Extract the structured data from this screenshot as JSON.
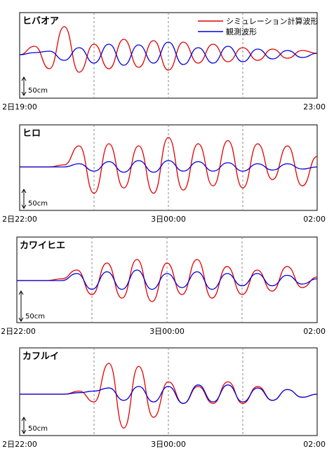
{
  "legend": {
    "simulated_label": "シミュレーション計算波形",
    "observed_label": "観測波形"
  },
  "colors": {
    "simulated": "#e00000",
    "observed": "#0000dd"
  },
  "chart_data": [
    {
      "type": "line",
      "title": "ヒバオア",
      "scale_label": "50cm",
      "x_tick_labels": [
        "2日19:00",
        "23:00"
      ],
      "xlim": [
        0,
        4
      ],
      "series": [
        {
          "name": "シミュレーション計算波形",
          "x": [
            0,
            0.2,
            0.4,
            0.6,
            0.8,
            1,
            1.2,
            1.4,
            1.6,
            1.8,
            2,
            2.2,
            2.4,
            2.6,
            2.8,
            3,
            3.2,
            3.4,
            3.6,
            3.8,
            4
          ],
          "y": [
            0,
            12,
            -20,
            40,
            -25,
            15,
            -20,
            22,
            -18,
            20,
            -22,
            18,
            -12,
            15,
            -10,
            10,
            -8,
            8,
            -5,
            6,
            2
          ]
        },
        {
          "name": "観測波形",
          "x": [
            0,
            0.2,
            0.4,
            0.6,
            0.8,
            1,
            1.2,
            1.4,
            1.6,
            1.8,
            2,
            2.2,
            2.4,
            2.6,
            2.8,
            3,
            3.2,
            3.4,
            3.6,
            3.8,
            4
          ],
          "y": [
            0,
            3,
            5,
            -8,
            10,
            -12,
            15,
            -15,
            14,
            -12,
            18,
            -14,
            10,
            -12,
            12,
            -10,
            8,
            -6,
            6,
            -4,
            2
          ]
        }
      ]
    },
    {
      "type": "line",
      "title": "ヒロ",
      "scale_label": "50cm",
      "x_tick_labels": [
        "2日22:00",
        "3日00:00",
        "02:00"
      ],
      "xlim": [
        0,
        4
      ],
      "series": [
        {
          "name": "シミュレーション計算波形",
          "x": [
            0,
            0.2,
            0.4,
            0.6,
            0.8,
            1,
            1.2,
            1.4,
            1.6,
            1.8,
            2,
            2.2,
            2.4,
            2.6,
            2.8,
            3,
            3.2,
            3.4,
            3.6,
            3.8,
            4
          ],
          "y": [
            0,
            0,
            0,
            2,
            20,
            -25,
            22,
            -20,
            20,
            -25,
            28,
            -22,
            22,
            -18,
            25,
            -20,
            22,
            -12,
            20,
            -18,
            10
          ]
        },
        {
          "name": "観測波形",
          "x": [
            0,
            0.2,
            0.4,
            0.6,
            0.8,
            1,
            1.2,
            1.4,
            1.6,
            1.8,
            2,
            2.2,
            2.4,
            2.6,
            2.8,
            3,
            3.2,
            3.4,
            3.6,
            3.8,
            4
          ],
          "y": [
            0,
            0,
            0,
            0,
            3,
            -4,
            5,
            -5,
            6,
            -5,
            6,
            -4,
            5,
            -4,
            4,
            -4,
            3,
            -3,
            3,
            -2,
            0
          ]
        }
      ]
    },
    {
      "type": "line",
      "title": "カワイヒエ",
      "scale_label": "50cm",
      "x_tick_labels": [
        "2日22:00",
        "3日00:00",
        "02:00"
      ],
      "xlim": [
        0,
        4
      ],
      "series": [
        {
          "name": "シミュレーション計算波形",
          "x": [
            0,
            0.2,
            0.4,
            0.6,
            0.8,
            1,
            1.2,
            1.4,
            1.6,
            1.8,
            2,
            2.2,
            2.4,
            2.6,
            2.8,
            3,
            3.2,
            3.4,
            3.6,
            3.8,
            4
          ],
          "y": [
            0,
            0,
            0,
            1,
            6,
            -8,
            10,
            -10,
            12,
            -12,
            10,
            -8,
            12,
            -10,
            8,
            -8,
            6,
            -6,
            8,
            -4,
            2
          ]
        },
        {
          "name": "観測波形",
          "x": [
            0,
            0.2,
            0.4,
            0.6,
            0.8,
            1,
            1.2,
            1.4,
            1.6,
            1.8,
            2,
            2.2,
            2.4,
            2.6,
            2.8,
            3,
            3.2,
            3.4,
            3.6,
            3.8,
            4
          ],
          "y": [
            0,
            0,
            0,
            0,
            4,
            -5,
            5,
            -5,
            6,
            -5,
            4,
            -4,
            5,
            -5,
            4,
            -3,
            4,
            -3,
            3,
            -2,
            1
          ]
        }
      ]
    },
    {
      "type": "line",
      "title": "カフルイ",
      "scale_label": "50cm",
      "x_tick_labels": [
        "2日22:00",
        "3日00:00",
        "02:00"
      ],
      "xlim": [
        0,
        4
      ],
      "series": [
        {
          "name": "シミュレーション計算波形",
          "x": [
            0,
            0.2,
            0.4,
            0.6,
            0.8,
            1,
            1.2,
            1.4,
            1.6,
            1.8,
            2,
            2.2,
            2.4,
            2.6,
            2.8,
            3,
            3.2,
            3.4,
            3.6,
            3.8,
            4
          ],
          "y": [
            0,
            0,
            0,
            0,
            2,
            -5,
            20,
            -22,
            18,
            -15,
            8,
            -6,
            5,
            -6,
            8,
            -6,
            5,
            -4,
            3,
            -2,
            0
          ]
        },
        {
          "name": "観測波形",
          "x": [
            0,
            0.2,
            0.4,
            0.6,
            0.8,
            1,
            1.2,
            1.4,
            1.6,
            1.8,
            2,
            2.2,
            2.4,
            2.6,
            2.8,
            3,
            3.2,
            3.4,
            3.6,
            3.8,
            4
          ],
          "y": [
            0,
            0,
            0,
            0,
            1,
            2,
            4,
            -4,
            5,
            -5,
            5,
            -6,
            6,
            -5,
            6,
            -5,
            4,
            -4,
            3,
            -2,
            0
          ]
        }
      ]
    }
  ]
}
